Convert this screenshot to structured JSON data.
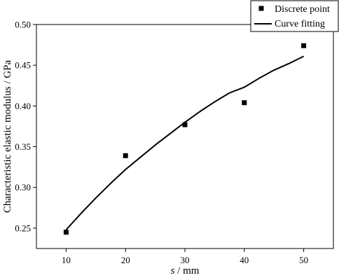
{
  "chart_data": {
    "type": "scatter",
    "xlabel_var": "s",
    "xlabel_unit": " / mm",
    "ylabel": "Characteristic elastic modulus / GPa",
    "xlim": [
      5,
      55
    ],
    "ylim": [
      0.225,
      0.5
    ],
    "x_ticks": [
      "10",
      "20",
      "30",
      "40",
      "50"
    ],
    "y_ticks": [
      "0.25",
      "0.30",
      "0.35",
      "0.40",
      "0.45",
      "0.50"
    ],
    "x_tick_values": [
      10,
      20,
      30,
      40,
      50
    ],
    "y_tick_values": [
      0.25,
      0.3,
      0.35,
      0.4,
      0.45,
      0.5
    ],
    "legend_position": "top-right",
    "grid": false,
    "series": [
      {
        "name": "Discrete point",
        "kind": "scatter",
        "marker": "square",
        "color": "#000000",
        "x": [
          10,
          20,
          30,
          40,
          50
        ],
        "y": [
          0.245,
          0.339,
          0.377,
          0.404,
          0.474
        ]
      },
      {
        "name": "Curve fitting",
        "kind": "line",
        "color": "#000000",
        "x": [
          10,
          12.5,
          15,
          17.5,
          20,
          22.5,
          25,
          27.5,
          30,
          32.5,
          35,
          37.5,
          40,
          42.5,
          45,
          47.5,
          50
        ],
        "y": [
          0.248,
          0.268,
          0.287,
          0.305,
          0.322,
          0.337,
          0.352,
          0.366,
          0.38,
          0.393,
          0.405,
          0.416,
          0.423,
          0.434,
          0.444,
          0.452,
          0.461
        ]
      }
    ]
  }
}
